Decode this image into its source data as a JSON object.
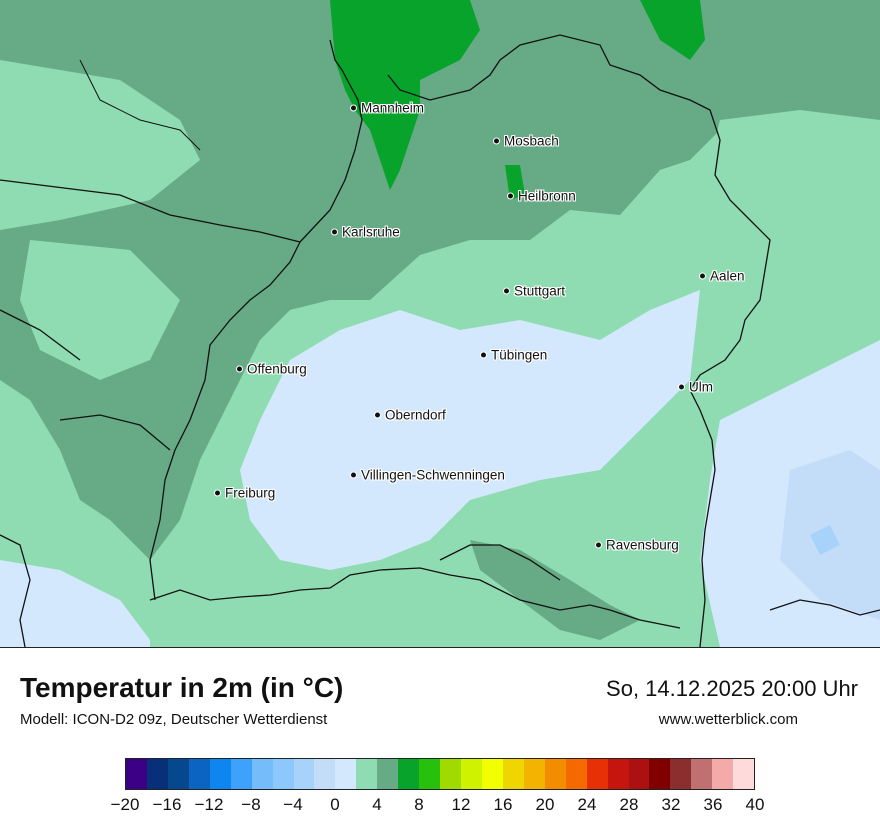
{
  "map": {
    "cities": [
      {
        "name": "Mannheim"
      },
      {
        "name": "Mosbach"
      },
      {
        "name": "Heilbronn"
      },
      {
        "name": "Karlsruhe"
      },
      {
        "name": "Aalen"
      },
      {
        "name": "Stuttgart"
      },
      {
        "name": "Tübingen"
      },
      {
        "name": "Offenburg"
      },
      {
        "name": "Ulm"
      },
      {
        "name": "Oberndorf"
      },
      {
        "name": "Villingen-Schwenningen"
      },
      {
        "name": "Freiburg"
      },
      {
        "name": "Ravensburg"
      }
    ],
    "colors": {
      "warm_green": "#8fdcb2",
      "mid_green": "#66ab86",
      "bright_green": "#08a32b",
      "pale_blue": "#d4e8fd",
      "light_blue": "#c3dcf8",
      "border": "#111111"
    }
  },
  "footer": {
    "title": "Temperatur in 2m (in °C)",
    "subtitle": "Modell: ICON-D2 09z, Deutscher Wetterdienst",
    "datetime": "So, 14.12.2025 20:00 Uhr",
    "website": "www.wetterblick.com"
  },
  "legend": {
    "min": -20,
    "max": 40,
    "colors": [
      "#3b0085",
      "#08307a",
      "#06488e",
      "#0b63c2",
      "#0d86f0",
      "#3ea1fb",
      "#74bcfa",
      "#8cc8fb",
      "#a7d3fb",
      "#c3dcf8",
      "#d4e8fd",
      "#8fdcb2",
      "#66ab86",
      "#08a32b",
      "#27c10d",
      "#a0db00",
      "#cff200",
      "#f2ff00",
      "#f0d600",
      "#f3b400",
      "#f28d00",
      "#f56a00",
      "#e83007",
      "#c5150f",
      "#ad1010",
      "#800000",
      "#8b2e2e",
      "#c07070",
      "#f5aaaa",
      "#ffdada"
    ],
    "tick_labels": [
      "−20",
      "−16",
      "−12",
      "−8",
      "−4",
      "0",
      "4",
      "8",
      "12",
      "16",
      "20",
      "24",
      "28",
      "32",
      "36",
      "40"
    ]
  }
}
